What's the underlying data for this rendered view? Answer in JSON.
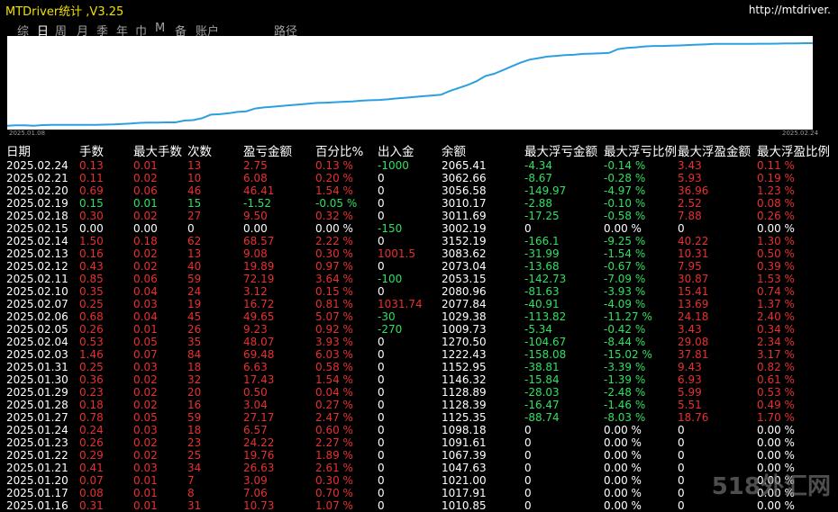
{
  "app": {
    "title": "MTDriver统计 ,V3.25",
    "url": "http://mtdriver."
  },
  "tabs": [
    "综",
    "日",
    "周",
    "月",
    "季",
    "年",
    "巾",
    "M",
    "备",
    "账户",
    "路径"
  ],
  "active_tab": 1,
  "chart": {
    "start_label": "2025.01.08",
    "end_label": "2025.02.24",
    "points": [
      1.08,
      1.1,
      1.11,
      1.08,
      1.12,
      1.13,
      1.13,
      1.13,
      1.13,
      1.13,
      1.14,
      1.15,
      1.16,
      1.19,
      1.22,
      1.27,
      1.29,
      1.29,
      1.3,
      1.3,
      1.42,
      1.45,
      1.58,
      1.82,
      1.85,
      1.91,
      2.0,
      2.04,
      2.23,
      2.3,
      2.35,
      2.4,
      2.45,
      2.5,
      2.55,
      2.6,
      2.62,
      2.65,
      2.68,
      2.7,
      2.75,
      2.78,
      2.8,
      2.84,
      2.9,
      2.95,
      3.0,
      3.05,
      3.1,
      3.15,
      3.4,
      3.6,
      3.8,
      4.05,
      4.4,
      4.55,
      4.8,
      5.05,
      5.3,
      5.5,
      5.6,
      5.7,
      5.75,
      5.8,
      5.82,
      5.88,
      5.9,
      5.92,
      5.95,
      6.2,
      6.28,
      6.32,
      6.38,
      6.41,
      6.41,
      6.43,
      6.45,
      6.48,
      6.5,
      6.52,
      6.55,
      6.55,
      6.55,
      6.55,
      6.55,
      6.56,
      6.56,
      6.57,
      6.58,
      6.58,
      6.6,
      6.6
    ],
    "line_color": "#2aa0e0"
  },
  "columns": [
    "日期",
    "手数",
    "最大手数",
    "次数",
    "盈亏金额",
    "百分比%",
    "出入金",
    "余额",
    "最大浮亏金额",
    "最大浮亏比例",
    "最大浮盈金额",
    "最大浮盈比例"
  ],
  "rows": [
    [
      "2025.02.24",
      "0.13",
      "0.01",
      "13",
      "2.75",
      "0.13 %",
      "-1000",
      "2065.41",
      "-4.34",
      "-0.14 %",
      "3.43",
      "0.11 %"
    ],
    [
      "2025.02.21",
      "0.11",
      "0.02",
      "10",
      "6.08",
      "0.20 %",
      "0",
      "3062.66",
      "-8.67",
      "-0.28 %",
      "5.93",
      "0.19 %"
    ],
    [
      "2025.02.20",
      "0.69",
      "0.06",
      "46",
      "46.41",
      "1.54 %",
      "0",
      "3056.58",
      "-149.97",
      "-4.97 %",
      "36.96",
      "1.23 %"
    ],
    [
      "2025.02.19",
      "0.15",
      "0.01",
      "15",
      "-1.52",
      "-0.05 %",
      "0",
      "3010.17",
      "-2.88",
      "-0.10 %",
      "2.52",
      "0.08 %"
    ],
    [
      "2025.02.18",
      "0.30",
      "0.02",
      "27",
      "9.50",
      "0.32 %",
      "0",
      "3011.69",
      "-17.25",
      "-0.58 %",
      "7.88",
      "0.26 %"
    ],
    [
      "2025.02.15",
      "0.00",
      "0.00",
      "0",
      "0.00",
      "0.00 %",
      "-150",
      "3002.19",
      "0",
      "0.00 %",
      "0",
      "0.00 %"
    ],
    [
      "2025.02.14",
      "1.50",
      "0.18",
      "62",
      "68.57",
      "2.22 %",
      "0",
      "3152.19",
      "-166.1",
      "-9.25 %",
      "40.22",
      "1.30 %"
    ],
    [
      "2025.02.13",
      "0.16",
      "0.02",
      "13",
      "9.08",
      "0.30 %",
      "1001.5",
      "3083.62",
      "-31.99",
      "-1.54 %",
      "10.31",
      "0.50 %"
    ],
    [
      "2025.02.12",
      "0.43",
      "0.02",
      "40",
      "19.89",
      "0.97 %",
      "0",
      "2073.04",
      "-13.68",
      "-0.67 %",
      "7.95",
      "0.39 %"
    ],
    [
      "2025.02.11",
      "0.85",
      "0.06",
      "59",
      "72.19",
      "3.64 %",
      "-100",
      "2053.15",
      "-142.73",
      "-7.09 %",
      "30.87",
      "1.53 %"
    ],
    [
      "2025.02.10",
      "0.35",
      "0.04",
      "24",
      "3.12",
      "0.15 %",
      "0",
      "2080.96",
      "-81.63",
      "-3.93 %",
      "15.41",
      "0.74 %"
    ],
    [
      "2025.02.07",
      "0.25",
      "0.03",
      "19",
      "16.72",
      "0.81 %",
      "1031.74",
      "2077.84",
      "-40.91",
      "-4.09 %",
      "13.69",
      "1.37 %"
    ],
    [
      "2025.02.06",
      "0.68",
      "0.04",
      "45",
      "49.65",
      "5.07 %",
      "-30",
      "1029.38",
      "-113.82",
      "-11.27 %",
      "24.18",
      "2.40 %"
    ],
    [
      "2025.02.05",
      "0.26",
      "0.01",
      "26",
      "9.23",
      "0.92 %",
      "-270",
      "1009.73",
      "-5.34",
      "-0.42 %",
      "3.43",
      "0.34 %"
    ],
    [
      "2025.02.04",
      "0.53",
      "0.05",
      "35",
      "48.07",
      "3.93 %",
      "0",
      "1270.50",
      "-104.67",
      "-8.44 %",
      "29.08",
      "2.34 %"
    ],
    [
      "2025.02.03",
      "1.46",
      "0.07",
      "84",
      "69.48",
      "6.03 %",
      "0",
      "1222.43",
      "-158.08",
      "-15.02 %",
      "37.81",
      "3.17 %"
    ],
    [
      "2025.01.31",
      "0.25",
      "0.03",
      "18",
      "6.63",
      "0.58 %",
      "0",
      "1152.95",
      "-38.81",
      "-3.39 %",
      "9.43",
      "0.82 %"
    ],
    [
      "2025.01.30",
      "0.36",
      "0.02",
      "32",
      "17.43",
      "1.54 %",
      "0",
      "1146.32",
      "-15.84",
      "-1.39 %",
      "6.93",
      "0.61 %"
    ],
    [
      "2025.01.29",
      "0.23",
      "0.02",
      "20",
      "0.50",
      "0.04 %",
      "0",
      "1128.89",
      "-28.03",
      "-2.48 %",
      "5.99",
      "0.53 %"
    ],
    [
      "2025.01.28",
      "0.18",
      "0.02",
      "16",
      "3.04",
      "0.27 %",
      "0",
      "1128.39",
      "-16.47",
      "-1.46 %",
      "5.51",
      "0.49 %"
    ],
    [
      "2025.01.27",
      "0.78",
      "0.05",
      "59",
      "27.17",
      "2.47 %",
      "0",
      "1125.35",
      "-88.74",
      "-8.03 %",
      "18.76",
      "1.70 %"
    ],
    [
      "2025.01.24",
      "0.24",
      "0.03",
      "18",
      "6.57",
      "0.60 %",
      "0",
      "1098.18",
      "0",
      "0.00 %",
      "0",
      "0.00 %"
    ],
    [
      "2025.01.23",
      "0.26",
      "0.02",
      "23",
      "24.22",
      "2.27 %",
      "0",
      "1091.61",
      "0",
      "0.00 %",
      "0",
      "0.00 %"
    ],
    [
      "2025.01.22",
      "0.29",
      "0.02",
      "25",
      "19.76",
      "1.89 %",
      "0",
      "1067.39",
      "0",
      "0.00 %",
      "0",
      "0.00 %"
    ],
    [
      "2025.01.21",
      "0.41",
      "0.03",
      "34",
      "26.63",
      "2.61 %",
      "0",
      "1047.63",
      "0",
      "0.00 %",
      "0",
      "0.00 %"
    ],
    [
      "2025.01.20",
      "0.07",
      "0.01",
      "7",
      "3.09",
      "0.30 %",
      "0",
      "1021.00",
      "0",
      "0.00 %",
      "0",
      "0.00 %"
    ],
    [
      "2025.01.17",
      "0.08",
      "0.01",
      "8",
      "7.06",
      "0.70 %",
      "0",
      "1017.91",
      "0",
      "0.00 %",
      "0",
      "0.00 %"
    ],
    [
      "2025.01.16",
      "0.31",
      "0.01",
      "31",
      "10.73",
      "1.07 %",
      "0",
      "1010.85",
      "0",
      "0.00 %",
      "0",
      "0.00 %"
    ]
  ],
  "watermark": "518外汇网"
}
